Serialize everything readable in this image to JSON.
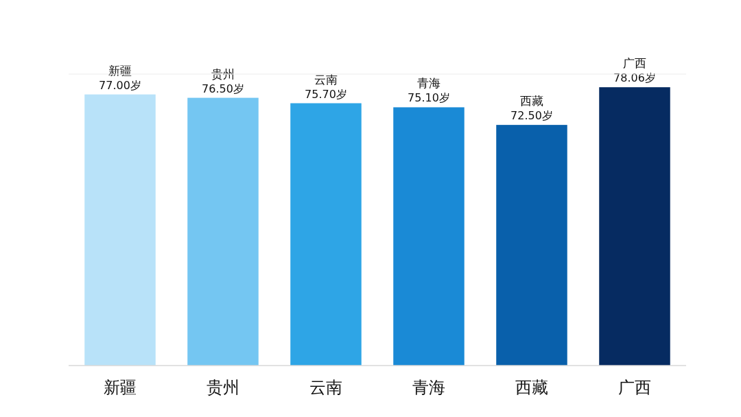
{
  "chart_data": {
    "type": "bar",
    "categories": [
      "新疆",
      "贵州",
      "云南",
      "青海",
      "西藏",
      "广西"
    ],
    "values": [
      77.0,
      76.5,
      75.7,
      75.1,
      72.5,
      78.06
    ],
    "value_labels": [
      "77.00岁",
      "76.50岁",
      "75.70岁",
      "75.10岁",
      "72.50岁",
      "78.06岁"
    ],
    "colors": [
      "#b8e2f9",
      "#74c6f2",
      "#2ea5e6",
      "#1a8ad6",
      "#0960ab",
      "#062b61"
    ],
    "ylim": [
      37,
      80
    ]
  }
}
